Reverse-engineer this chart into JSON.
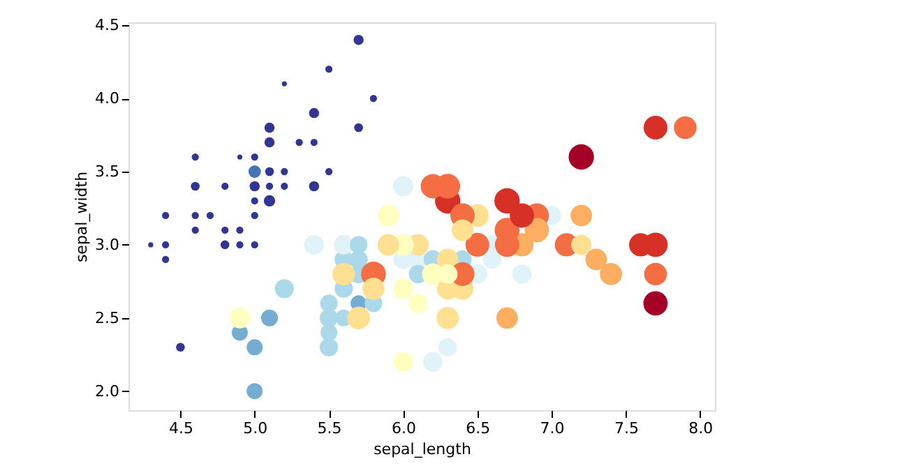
{
  "chart_data": {
    "type": "bubble",
    "xlabel": "sepal_length",
    "ylabel": "sepal_width",
    "xlim": [
      4.15,
      8.1
    ],
    "ylim": [
      1.87,
      4.52
    ],
    "xticks": [
      {
        "value": 4.5,
        "label": "4.5"
      },
      {
        "value": 5.0,
        "label": "5.0"
      },
      {
        "value": 5.5,
        "label": "5.5"
      },
      {
        "value": 6.0,
        "label": "6.0"
      },
      {
        "value": 6.5,
        "label": "6.5"
      },
      {
        "value": 7.0,
        "label": "7.0"
      },
      {
        "value": 7.5,
        "label": "7.5"
      },
      {
        "value": 8.0,
        "label": "8.0"
      }
    ],
    "yticks": [
      {
        "value": 2.0,
        "label": "2.0"
      },
      {
        "value": 2.5,
        "label": "2.5"
      },
      {
        "value": 3.0,
        "label": "3.0"
      },
      {
        "value": 3.5,
        "label": "3.5"
      },
      {
        "value": 4.0,
        "label": "4.0"
      },
      {
        "value": 4.5,
        "label": "4.5"
      }
    ],
    "grid": false,
    "legend": false,
    "marker": "circle",
    "x": [
      4.9,
      4.6,
      5.0,
      4.6,
      4.4,
      5.4,
      4.3,
      5.8,
      5.7,
      5.4,
      5.1,
      5.7,
      5.1,
      4.6,
      5.1,
      4.8,
      5.0,
      5.0,
      5.2,
      5.2,
      4.7,
      4.8,
      5.4,
      5.2,
      5.5,
      4.9,
      5.0,
      5.5,
      4.9,
      4.4,
      5.1,
      4.5,
      4.4,
      5.0,
      5.1,
      4.8,
      4.6,
      5.3,
      5.0,
      7.0,
      5.5,
      6.5,
      4.9,
      6.6,
      5.2,
      5.0,
      6.1,
      5.6,
      5.6,
      6.2,
      5.6,
      5.9,
      6.1,
      6.4,
      6.6,
      6.8,
      6.0,
      5.7,
      5.5,
      6.0,
      5.4,
      6.0,
      6.3,
      5.5,
      5.5,
      5.8,
      5.0,
      5.6,
      5.7,
      5.7,
      6.2,
      5.1,
      5.7,
      6.3,
      7.1,
      6.3,
      6.5,
      7.6,
      4.9,
      7.3,
      6.7,
      7.2,
      6.5,
      6.4,
      6.8,
      5.7,
      5.8,
      6.4,
      7.7,
      7.7,
      6.0,
      6.9,
      5.6,
      7.7,
      6.3,
      7.2,
      6.2,
      6.1,
      7.2,
      7.4,
      7.9,
      6.4,
      6.3,
      6.1,
      7.7,
      6.3,
      6.4,
      6.0,
      6.7,
      6.9,
      5.8,
      6.8,
      6.7,
      6.7,
      6.3,
      6.2,
      5.9
    ],
    "values": [
      3.0,
      3.1,
      3.6,
      3.4,
      2.9,
      3.7,
      3.0,
      4.0,
      4.4,
      3.9,
      3.5,
      3.8,
      3.7,
      3.6,
      3.3,
      3.4,
      3.0,
      3.4,
      3.5,
      3.4,
      3.2,
      3.1,
      3.4,
      4.1,
      4.2,
      3.1,
      3.2,
      3.5,
      3.6,
      3.0,
      3.4,
      2.3,
      3.2,
      3.5,
      3.8,
      3.0,
      3.2,
      3.7,
      3.3,
      3.2,
      2.3,
      2.8,
      2.4,
      2.9,
      2.7,
      2.0,
      2.9,
      2.9,
      3.0,
      2.2,
      2.5,
      3.2,
      2.8,
      2.9,
      3.0,
      2.8,
      2.9,
      2.6,
      2.4,
      2.7,
      3.0,
      3.4,
      2.3,
      2.5,
      2.6,
      2.6,
      2.3,
      2.7,
      3.0,
      2.9,
      2.9,
      2.5,
      2.8,
      3.3,
      3.0,
      2.9,
      3.0,
      3.0,
      2.5,
      2.9,
      2.5,
      3.6,
      3.2,
      2.7,
      3.0,
      2.5,
      2.8,
      3.2,
      3.8,
      2.6,
      2.2,
      3.2,
      2.8,
      2.8,
      2.7,
      3.2,
      2.8,
      3.0,
      3.0,
      2.8,
      3.8,
      2.8,
      2.8,
      2.6,
      3.0,
      3.4,
      3.1,
      3.0,
      3.1,
      3.1,
      2.7,
      3.2,
      3.3,
      3.0,
      2.5,
      3.4,
      3.0
    ],
    "sizes": [
      0.08,
      0.08,
      0.08,
      0.12,
      0.08,
      0.08,
      0.04,
      0.08,
      0.16,
      0.16,
      0.12,
      0.12,
      0.16,
      0.08,
      0.2,
      0.08,
      0.08,
      0.16,
      0.08,
      0.08,
      0.08,
      0.08,
      0.16,
      0.04,
      0.08,
      0.08,
      0.08,
      0.08,
      0.04,
      0.08,
      0.08,
      0.12,
      0.08,
      0.24,
      0.16,
      0.12,
      0.08,
      0.08,
      0.08,
      0.56,
      0.52,
      0.6,
      0.4,
      0.52,
      0.56,
      0.4,
      0.56,
      0.52,
      0.6,
      0.6,
      0.44,
      0.72,
      0.52,
      0.52,
      0.56,
      0.56,
      0.6,
      0.4,
      0.44,
      0.64,
      0.6,
      0.64,
      0.52,
      0.52,
      0.48,
      0.48,
      0.4,
      0.52,
      0.48,
      0.52,
      0.52,
      0.44,
      0.52,
      1.0,
      0.84,
      0.72,
      0.88,
      0.84,
      0.68,
      0.72,
      0.72,
      1.0,
      0.8,
      0.76,
      0.84,
      0.8,
      0.96,
      0.92,
      0.88,
      0.92,
      0.6,
      0.92,
      0.8,
      0.8,
      0.72,
      0.72,
      0.72,
      0.72,
      0.64,
      0.76,
      0.8,
      0.88,
      0.6,
      0.56,
      0.92,
      0.96,
      0.72,
      0.72,
      0.96,
      0.92,
      0.76,
      0.92,
      1.0,
      0.92,
      0.76,
      0.92,
      0.72
    ],
    "colors": [
      "#313695",
      "#313695",
      "#313695",
      "#313695",
      "#313695",
      "#313695",
      "#313695",
      "#313695",
      "#313695",
      "#313695",
      "#313695",
      "#313695",
      "#313695",
      "#313695",
      "#313695",
      "#313695",
      "#313695",
      "#313695",
      "#313695",
      "#313695",
      "#313695",
      "#313695",
      "#313695",
      "#313695",
      "#313695",
      "#313695",
      "#313695",
      "#313695",
      "#313695",
      "#313695",
      "#313695",
      "#313695",
      "#313695",
      "#4575b4",
      "#313695",
      "#313695",
      "#313695",
      "#313695",
      "#313695",
      "#e0f3f8",
      "#abd9e9",
      "#e0f3f8",
      "#74add1",
      "#e0f3f8",
      "#abd9e9",
      "#74add1",
      "#e0f3f8",
      "#abd9e9",
      "#e0f3f8",
      "#e0f3f8",
      "#abd9e9",
      "#ffffbf",
      "#abd9e9",
      "#abd9e9",
      "#e0f3f8",
      "#e0f3f8",
      "#e0f3f8",
      "#74add1",
      "#abd9e9",
      "#ffffbf",
      "#e0f3f8",
      "#e0f3f8",
      "#e0f3f8",
      "#abd9e9",
      "#abd9e9",
      "#abd9e9",
      "#74add1",
      "#abd9e9",
      "#abd9e9",
      "#abd9e9",
      "#abd9e9",
      "#74add1",
      "#abd9e9",
      "#d73027",
      "#f46d43",
      "#fee090",
      "#f46d43",
      "#d73027",
      "#ffffbf",
      "#fdae61",
      "#fdae61",
      "#a50026",
      "#fee090",
      "#fee090",
      "#fdae61",
      "#fee090",
      "#f46d43",
      "#f46d43",
      "#d73027",
      "#a50026",
      "#ffffbf",
      "#f46d43",
      "#fee090",
      "#f46d43",
      "#fee090",
      "#fdae61",
      "#ffffbf",
      "#fee090",
      "#fee090",
      "#fdae61",
      "#f46d43",
      "#f46d43",
      "#ffffbf",
      "#ffffbf",
      "#d73027",
      "#f46d43",
      "#fee090",
      "#ffffbf",
      "#f46d43",
      "#fdae61",
      "#fee090",
      "#d73027",
      "#d73027",
      "#f46d43",
      "#fee090",
      "#f46d43",
      "#fee090"
    ]
  }
}
